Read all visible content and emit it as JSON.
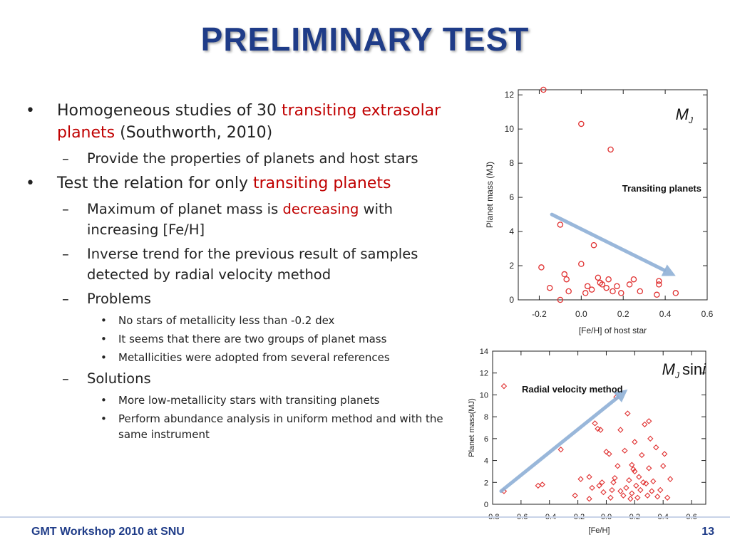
{
  "title": "PRELIMINARY TEST",
  "bullets": {
    "b1": {
      "pre": "Homogeneous studies of 30 ",
      "hl": "transiting extrasolar planets",
      "post": " (Southworth, 2010)"
    },
    "b1_sub1": "Provide the properties of planets and host stars",
    "b2": {
      "pre": "Test the relation for only ",
      "hl": "transiting planets"
    },
    "b2_sub1": {
      "pre": "Maximum of planet mass is ",
      "hl": "decreasing",
      "post": " with increasing [Fe/H]"
    },
    "b2_sub2": "Inverse trend for the previous result of samples detected by radial velocity method",
    "b2_sub3": "Problems",
    "problems": [
      "No stars of metallicity less than -0.2 dex",
      "It seems that there are two groups of planet mass",
      "Metallicities were adopted from several references"
    ],
    "b2_sub4": "Solutions",
    "solutions": [
      "More low-metallicity stars with transiting planets",
      "Perform abundance analysis in uniform method and with the same instrument"
    ]
  },
  "footer": {
    "left": "GMT Workshop 2010 at SNU",
    "page": "13"
  },
  "chart_data": [
    {
      "type": "scatter",
      "xlabel": "[Fe/H] of host star",
      "ylabel": "Planet mass (MJ)",
      "xlim": [
        -0.3,
        0.6
      ],
      "ylim": [
        0,
        12.3
      ],
      "xticks": [
        -0.2,
        0.0,
        0.2,
        0.4,
        0.6
      ],
      "yticks": [
        0,
        2,
        4,
        6,
        8,
        10,
        12
      ],
      "annotation": "Transiting planets",
      "unit_label": {
        "m": "M",
        "sub": "J"
      },
      "marker": "circle",
      "color": "#e03030",
      "arrow": {
        "from": [
          -0.14,
          5.0
        ],
        "to": [
          0.45,
          1.4
        ],
        "color": "#8fb0d6"
      },
      "points": [
        [
          -0.18,
          12.3
        ],
        [
          0.0,
          10.3
        ],
        [
          0.14,
          8.8
        ],
        [
          -0.1,
          4.4
        ],
        [
          0.06,
          3.2
        ],
        [
          -0.19,
          1.9
        ],
        [
          0.0,
          2.1
        ],
        [
          -0.08,
          1.5
        ],
        [
          -0.07,
          1.2
        ],
        [
          0.08,
          1.3
        ],
        [
          0.09,
          1.0
        ],
        [
          0.13,
          1.2
        ],
        [
          0.17,
          0.8
        ],
        [
          0.23,
          0.9
        ],
        [
          0.25,
          1.2
        ],
        [
          0.37,
          1.1
        ],
        [
          0.37,
          0.9
        ],
        [
          -0.15,
          0.7
        ],
        [
          -0.06,
          0.5
        ],
        [
          0.03,
          0.8
        ],
        [
          0.05,
          0.6
        ],
        [
          0.12,
          0.7
        ],
        [
          0.15,
          0.5
        ],
        [
          0.19,
          0.4
        ],
        [
          0.28,
          0.5
        ],
        [
          0.36,
          0.3
        ],
        [
          0.45,
          0.4
        ],
        [
          -0.1,
          0.0
        ],
        [
          0.02,
          0.4
        ],
        [
          0.1,
          0.9
        ]
      ]
    },
    {
      "type": "scatter",
      "xlabel": "[Fe/H]",
      "ylabel": "Planet mass(MJ)",
      "xlim": [
        -0.8,
        0.7
      ],
      "ylim": [
        0,
        14
      ],
      "xticks": [
        -0.8,
        -0.6,
        -0.4,
        -0.2,
        0.0,
        0.2,
        0.4,
        0.6
      ],
      "yticks": [
        0,
        2,
        4,
        6,
        8,
        10,
        12,
        14
      ],
      "annotation": "Radial velocity method",
      "unit_label": {
        "m": "M",
        "sub": "J",
        "suffix": "sin",
        "i": "i"
      },
      "marker": "diamond",
      "color": "#e03030",
      "arrow": {
        "from": [
          -0.74,
          1.2
        ],
        "to": [
          0.15,
          10.5
        ],
        "color": "#8fb0d6"
      },
      "points": [
        [
          -0.72,
          10.8
        ],
        [
          -0.72,
          1.2
        ],
        [
          -0.48,
          1.7
        ],
        [
          -0.45,
          1.8
        ],
        [
          -0.32,
          5.0
        ],
        [
          -0.22,
          0.8
        ],
        [
          -0.18,
          2.3
        ],
        [
          -0.12,
          2.5
        ],
        [
          -0.12,
          0.5
        ],
        [
          -0.1,
          1.5
        ],
        [
          -0.08,
          7.4
        ],
        [
          -0.06,
          6.9
        ],
        [
          -0.04,
          6.8
        ],
        [
          -0.05,
          1.7
        ],
        [
          -0.03,
          2.0
        ],
        [
          -0.02,
          1.1
        ],
        [
          0.0,
          4.8
        ],
        [
          0.02,
          4.6
        ],
        [
          0.03,
          0.6
        ],
        [
          0.04,
          1.3
        ],
        [
          0.05,
          2.0
        ],
        [
          0.06,
          2.4
        ],
        [
          0.07,
          9.8
        ],
        [
          0.08,
          3.5
        ],
        [
          0.1,
          6.8
        ],
        [
          0.1,
          1.2
        ],
        [
          0.12,
          0.8
        ],
        [
          0.13,
          4.9
        ],
        [
          0.14,
          1.5
        ],
        [
          0.15,
          8.3
        ],
        [
          0.16,
          2.2
        ],
        [
          0.17,
          0.5
        ],
        [
          0.18,
          3.6
        ],
        [
          0.18,
          1.0
        ],
        [
          0.2,
          5.7
        ],
        [
          0.2,
          3.0
        ],
        [
          0.21,
          1.7
        ],
        [
          0.22,
          0.6
        ],
        [
          0.23,
          2.5
        ],
        [
          0.24,
          1.3
        ],
        [
          0.25,
          4.5
        ],
        [
          0.27,
          7.3
        ],
        [
          0.28,
          1.9
        ],
        [
          0.29,
          0.8
        ],
        [
          0.3,
          7.6
        ],
        [
          0.3,
          3.3
        ],
        [
          0.31,
          6.0
        ],
        [
          0.32,
          1.2
        ],
        [
          0.33,
          2.1
        ],
        [
          0.35,
          5.2
        ],
        [
          0.36,
          0.7
        ],
        [
          0.38,
          1.3
        ],
        [
          0.4,
          3.5
        ],
        [
          0.41,
          4.6
        ],
        [
          0.43,
          0.6
        ],
        [
          0.45,
          2.3
        ],
        [
          0.26,
          2.0
        ],
        [
          0.19,
          3.2
        ]
      ]
    }
  ]
}
